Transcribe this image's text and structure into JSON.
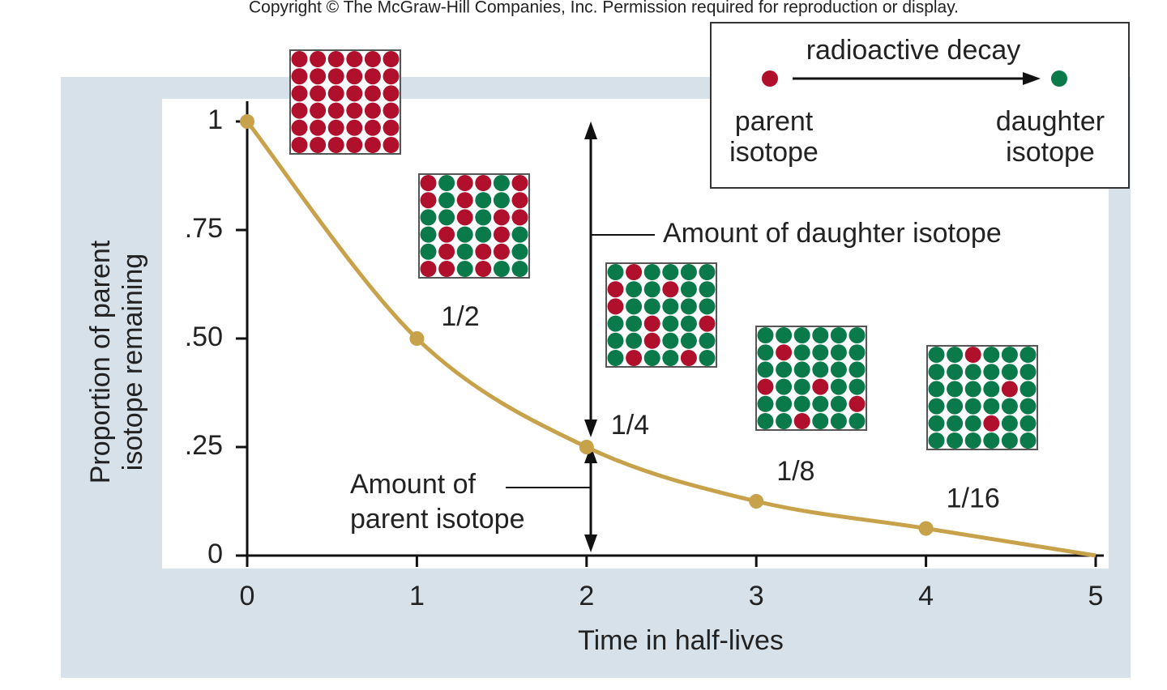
{
  "copyright": "Copyright © The McGraw-Hill Companies, Inc. Permission required for reproduction or display.",
  "chart_data": {
    "type": "line",
    "x": [
      0,
      1,
      2,
      3,
      4,
      5
    ],
    "series": [
      {
        "name": "parent isotope",
        "color": "#c8a24a",
        "values": [
          1,
          0.5,
          0.25,
          0.125,
          0.0625,
          0
        ],
        "markers": [
          true,
          true,
          true,
          true,
          true,
          false
        ],
        "value_labels": [
          null,
          "1/2",
          "1/4",
          "1/8",
          "1/16",
          null
        ]
      }
    ],
    "xlim": [
      0,
      5
    ],
    "ylim": [
      0,
      1
    ],
    "xticks": [
      0,
      1,
      2,
      3,
      4,
      5
    ],
    "yticks": [
      0,
      {
        "value": 0.25,
        "label": ".25"
      },
      {
        "value": 0.5,
        "label": ".50"
      },
      {
        "value": 0.75,
        "label": ".75"
      },
      1
    ],
    "x_label": "Time in half-lives",
    "y_label": [
      "Proportion of parent",
      "isotope remaining"
    ],
    "annotations": {
      "daughter": "Amount of daughter isotope",
      "parent": [
        "Amount of",
        "parent isotope"
      ]
    },
    "legend": {
      "title": "radioactive decay",
      "parent": [
        "parent",
        "isotope"
      ],
      "daughter": [
        "daughter",
        "isotope"
      ],
      "parent_color": "#b0102c",
      "daughter_color": "#0a7a4a"
    }
  }
}
